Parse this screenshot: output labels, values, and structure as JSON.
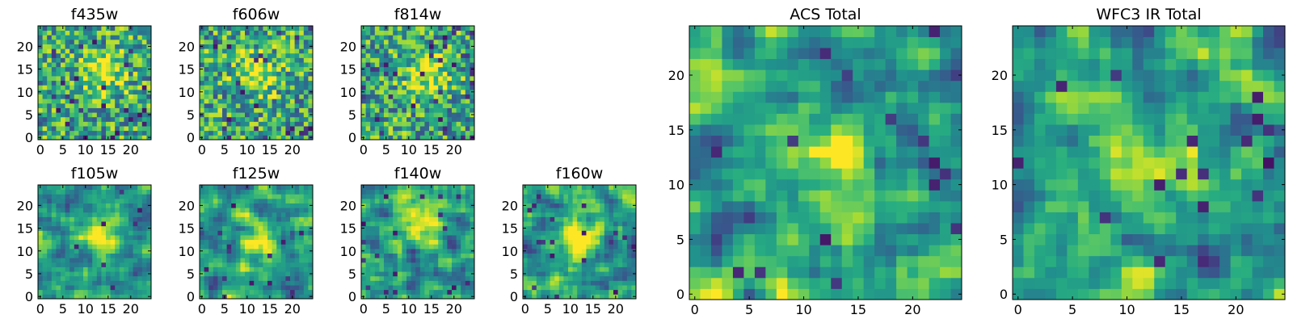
{
  "figure": {
    "description_free": true
  },
  "colors": {
    "viridis_dark": "#440154",
    "viridis_mid": "#21918c",
    "viridis_bright": "#fde725",
    "axis": "#000000",
    "background": "#ffffff"
  },
  "chart_data": [
    {
      "type": "heatmap",
      "title": "f435w",
      "rows": 25,
      "cols": 25,
      "xticks": [
        0,
        5,
        10,
        15,
        20
      ],
      "yticks": [
        0,
        5,
        10,
        15,
        20
      ],
      "xlim": [
        -0.5,
        24.5
      ],
      "ylim": [
        -0.5,
        24.5
      ],
      "colormap": "viridis",
      "values_note": "pixel noise map with faint central blob",
      "peak": {
        "x": 14,
        "y": 14
      }
    },
    {
      "type": "heatmap",
      "title": "f606w",
      "rows": 25,
      "cols": 25,
      "xticks": [
        0,
        5,
        10,
        15,
        20
      ],
      "yticks": [
        0,
        5,
        10,
        15,
        20
      ],
      "xlim": [
        -0.5,
        24.5
      ],
      "ylim": [
        -0.5,
        24.5
      ],
      "colormap": "viridis",
      "peak": {
        "x": 12,
        "y": 14
      }
    },
    {
      "type": "heatmap",
      "title": "f814w",
      "rows": 25,
      "cols": 25,
      "xticks": [
        0,
        5,
        10,
        15,
        20
      ],
      "yticks": [
        0,
        5,
        10,
        15,
        20
      ],
      "xlim": [
        -0.5,
        24.5
      ],
      "ylim": [
        -0.5,
        24.5
      ],
      "colormap": "viridis",
      "peak": {
        "x": 14,
        "y": 14
      }
    },
    {
      "type": "heatmap",
      "title": "f105w",
      "rows": 25,
      "cols": 25,
      "xticks": [
        0,
        5,
        10,
        15,
        20
      ],
      "yticks": [
        0,
        5,
        10,
        15,
        20
      ],
      "xlim": [
        -0.5,
        24.5
      ],
      "ylim": [
        -0.5,
        24.5
      ],
      "colormap": "viridis",
      "peak": {
        "x": 13,
        "y": 15
      }
    },
    {
      "type": "heatmap",
      "title": "f125w",
      "rows": 25,
      "cols": 25,
      "xticks": [
        0,
        5,
        10,
        15,
        20
      ],
      "yticks": [
        0,
        5,
        10,
        15,
        20
      ],
      "xlim": [
        -0.5,
        24.5
      ],
      "ylim": [
        -0.5,
        24.5
      ],
      "colormap": "viridis",
      "peak": {
        "x": 12,
        "y": 12
      }
    },
    {
      "type": "heatmap",
      "title": "f140w",
      "rows": 25,
      "cols": 25,
      "xticks": [
        0,
        5,
        10,
        15,
        20
      ],
      "yticks": [
        0,
        5,
        10,
        15,
        20
      ],
      "xlim": [
        -0.5,
        24.5
      ],
      "ylim": [
        -0.5,
        24.5
      ],
      "colormap": "viridis",
      "peak": {
        "x": 12,
        "y": 17
      }
    },
    {
      "type": "heatmap",
      "title": "f160w",
      "rows": 25,
      "cols": 25,
      "xticks": [
        0,
        5,
        10,
        15,
        20
      ],
      "yticks": [
        0,
        5,
        10,
        15,
        20
      ],
      "xlim": [
        -0.5,
        24.5
      ],
      "ylim": [
        -0.5,
        24.5
      ],
      "colormap": "viridis",
      "peak": {
        "x": 12,
        "y": 12
      }
    },
    {
      "type": "heatmap",
      "title": "ACS Total",
      "rows": 25,
      "cols": 25,
      "xticks": [
        0,
        5,
        10,
        15,
        20
      ],
      "yticks": [
        0,
        5,
        10,
        15,
        20
      ],
      "xlim": [
        -0.5,
        24.5
      ],
      "ylim": [
        -0.5,
        24.5
      ],
      "colormap": "viridis",
      "peak": {
        "x": 13,
        "y": 13
      }
    },
    {
      "type": "heatmap",
      "title": "WFC3 IR Total",
      "rows": 25,
      "cols": 25,
      "xticks": [
        0,
        5,
        10,
        15,
        20
      ],
      "yticks": [
        0,
        5,
        10,
        15,
        20
      ],
      "xlim": [
        -0.5,
        24.5
      ],
      "ylim": [
        -0.5,
        24.5
      ],
      "colormap": "viridis",
      "peak": {
        "x": 12,
        "y": 13
      }
    }
  ]
}
